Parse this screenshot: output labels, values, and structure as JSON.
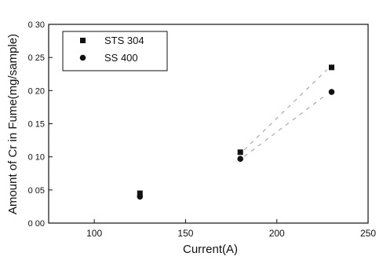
{
  "chart_data": {
    "type": "scatter",
    "title": "",
    "xlabel": "Current(A)",
    "ylabel": "Amount of Cr in Fume(mg/sample)",
    "xlim": [
      75,
      250
    ],
    "ylim": [
      0.0,
      0.3
    ],
    "xticks": [
      100,
      150,
      200,
      250
    ],
    "xtick_labels": [
      "100",
      "150",
      "200",
      "250"
    ],
    "yticks": [
      0.0,
      0.05,
      0.1,
      0.15,
      0.2,
      0.25,
      0.3
    ],
    "ytick_labels": [
      "0 00",
      "0 05",
      "0 10",
      "0 15",
      "0 20",
      "0 25",
      "0 30"
    ],
    "grid": false,
    "legend_position": "top-left",
    "series": [
      {
        "name": "STS 304",
        "marker": "square",
        "color": "#111111",
        "x": [
          125,
          180,
          230
        ],
        "y": [
          0.045,
          0.107,
          0.235
        ]
      },
      {
        "name": "SS 400",
        "marker": "circle",
        "color": "#111111",
        "x": [
          125,
          180,
          230
        ],
        "y": [
          0.04,
          0.097,
          0.198
        ]
      }
    ],
    "trend_lines": [
      {
        "series": "STS 304",
        "x": [
          180,
          230
        ],
        "y": [
          0.107,
          0.235
        ]
      },
      {
        "series": "SS 400",
        "x": [
          180,
          230
        ],
        "y": [
          0.097,
          0.198
        ]
      }
    ]
  }
}
